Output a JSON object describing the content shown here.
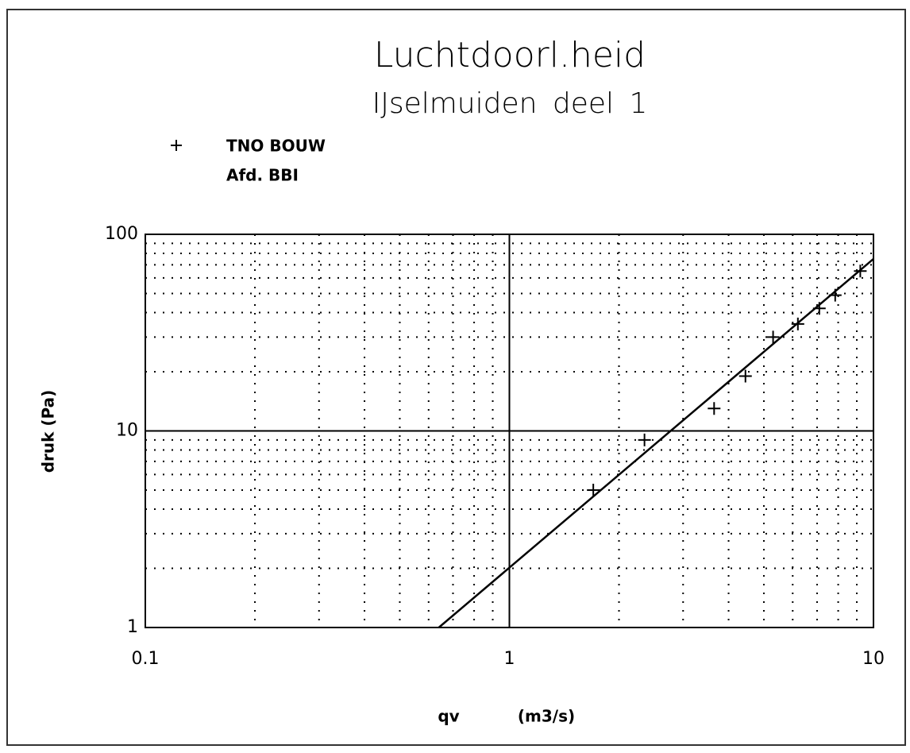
{
  "chart_data": {
    "type": "scatter",
    "title": "Luchtdoorl.heid",
    "subtitle": "IJselmuiden deel 1",
    "annotation": "Afd. BBI",
    "xlabel": "qv",
    "xunit": "(m3/s)",
    "ylabel": "druk (Pa)",
    "log_x": true,
    "log_y": true,
    "grid": true,
    "xlim": [
      0.1,
      10
    ],
    "ylim": [
      1,
      100
    ],
    "xticks": [
      0.1,
      1,
      10
    ],
    "yticks": [
      1,
      10,
      100
    ],
    "xminor": [
      0.2,
      0.3,
      0.4,
      0.5,
      0.6,
      0.7,
      0.8,
      0.9,
      2,
      3,
      4,
      5,
      6,
      7,
      8,
      9
    ],
    "yminor": [
      2,
      3,
      4,
      5,
      6,
      7,
      8,
      9,
      20,
      30,
      40,
      50,
      60,
      70,
      80,
      90
    ],
    "series": [
      {
        "name": "TNO BOUW",
        "color": "#000000",
        "marker": "+",
        "x": [
          1.7,
          2.35,
          3.65,
          4.45,
          5.3,
          6.2,
          7.1,
          7.85,
          9.2
        ],
        "values": [
          5,
          9,
          13,
          19,
          30,
          35,
          42,
          49,
          65
        ]
      }
    ],
    "fit_line": {
      "color": "#000000",
      "x": [
        0.64,
        10
      ],
      "values": [
        1,
        75
      ]
    }
  }
}
